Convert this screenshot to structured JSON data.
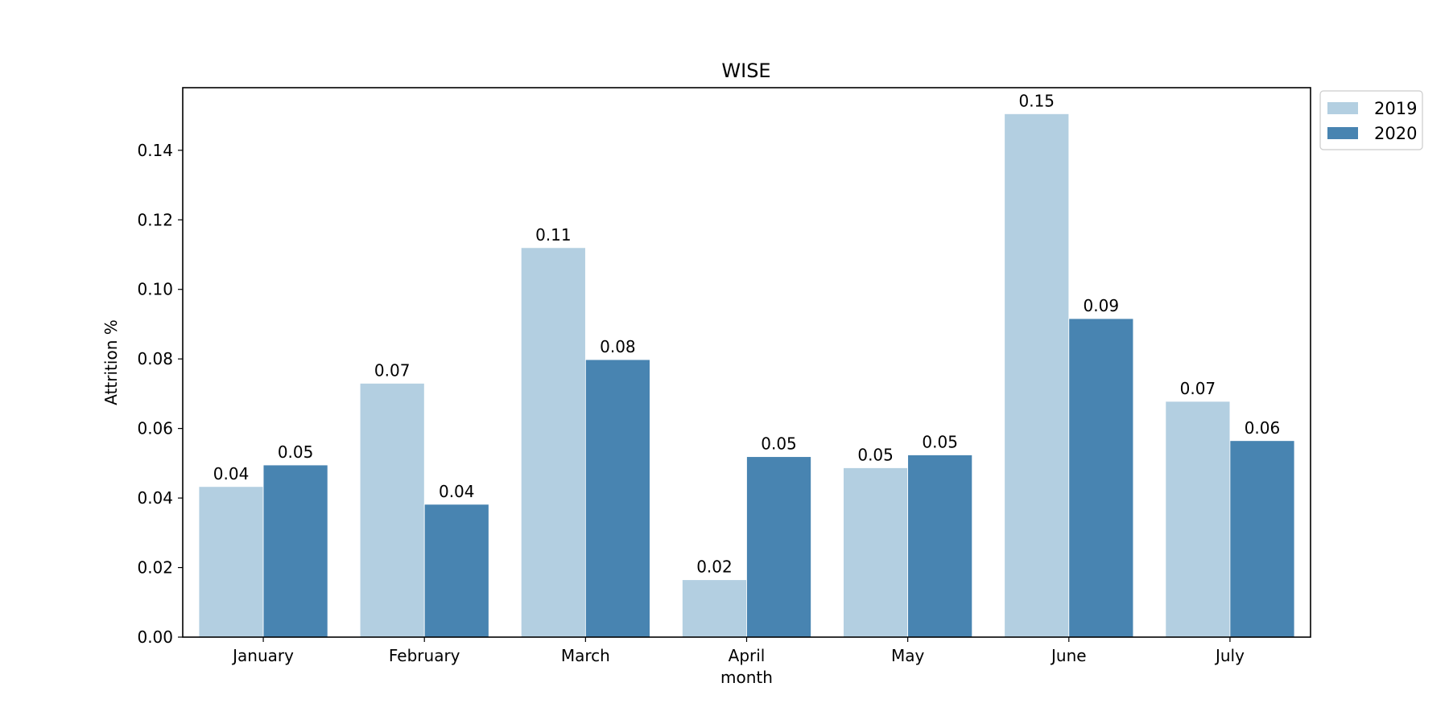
{
  "chart_data": {
    "type": "bar",
    "title": "WISE",
    "xlabel": "month",
    "ylabel": "Attrition %",
    "categories": [
      "January",
      "February",
      "March",
      "April",
      "May",
      "June",
      "July"
    ],
    "series": [
      {
        "name": "2019",
        "color": "#b3cfe1",
        "values": [
          0.0433,
          0.073,
          0.112,
          0.0165,
          0.0487,
          0.1505,
          0.0678
        ],
        "labels": [
          "0.04",
          "0.07",
          "0.11",
          "0.02",
          "0.05",
          "0.15",
          "0.07"
        ]
      },
      {
        "name": "2020",
        "color": "#4884b1",
        "values": [
          0.0495,
          0.0382,
          0.0798,
          0.0519,
          0.0524,
          0.0916,
          0.0565
        ],
        "labels": [
          "0.05",
          "0.04",
          "0.08",
          "0.05",
          "0.05",
          "0.09",
          "0.06"
        ]
      }
    ],
    "ylim": [
      0,
      0.158
    ],
    "yticks": [
      "0.00",
      "0.02",
      "0.04",
      "0.06",
      "0.08",
      "0.10",
      "0.12",
      "0.14"
    ],
    "grid": false,
    "legend_position": "outside-top-right"
  }
}
